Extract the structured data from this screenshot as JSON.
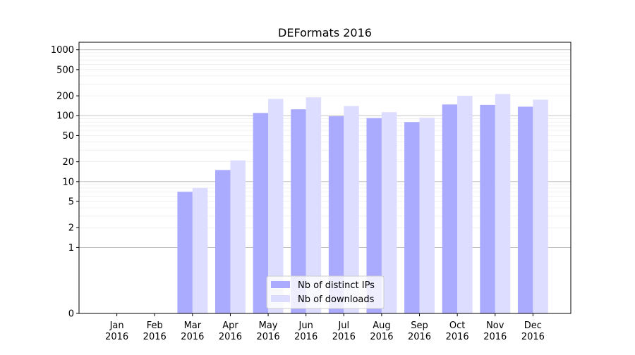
{
  "chart_data": {
    "type": "bar",
    "title": "DEFormats 2016",
    "xlabel": "",
    "ylabel": "",
    "y_scale": "symlog",
    "ylim": [
      0,
      1300
    ],
    "grid": "horizontal",
    "legend_position": "bottom-center",
    "categories": [
      [
        "Jan",
        "2016"
      ],
      [
        "Feb",
        "2016"
      ],
      [
        "Mar",
        "2016"
      ],
      [
        "Apr",
        "2016"
      ],
      [
        "May",
        "2016"
      ],
      [
        "Jun",
        "2016"
      ],
      [
        "Jul",
        "2016"
      ],
      [
        "Aug",
        "2016"
      ],
      [
        "Sep",
        "2016"
      ],
      [
        "Oct",
        "2016"
      ],
      [
        "Nov",
        "2016"
      ],
      [
        "Dec",
        "2016"
      ]
    ],
    "y_ticks": [
      0,
      1,
      2,
      5,
      10,
      20,
      50,
      100,
      200,
      500,
      1000
    ],
    "series": [
      {
        "name": "Nb of distinct IPs",
        "color": "#aaaaff",
        "values": [
          0,
          0,
          7,
          15,
          110,
          125,
          98,
          92,
          80,
          148,
          146,
          137
        ]
      },
      {
        "name": "Nb of downloads",
        "color": "#ddddff",
        "values": [
          0,
          0,
          8,
          21,
          180,
          190,
          140,
          113,
          93,
          200,
          213,
          175
        ]
      }
    ]
  }
}
